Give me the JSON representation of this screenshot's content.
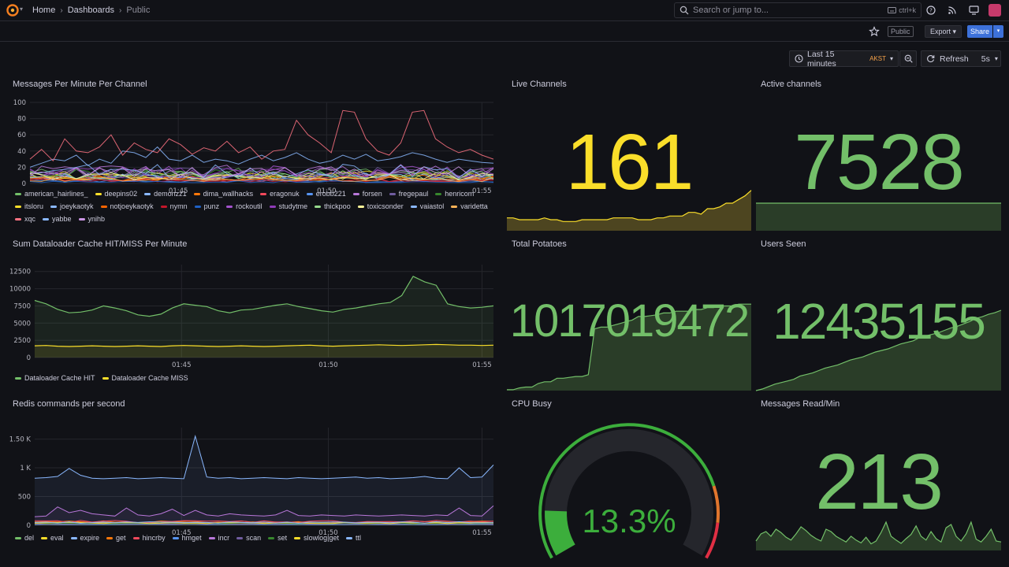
{
  "breadcrumb": {
    "home": "Home",
    "dashboards": "Dashboards",
    "current": "Public"
  },
  "search": {
    "placeholder": "Search or jump to...",
    "shortcut": "ctrl+k"
  },
  "toolbar": {
    "public_badge": "Public",
    "export_label": "Export",
    "share_label": "Share"
  },
  "timepicker": {
    "range": "Last 15 minutes",
    "timezone": "AKST",
    "refresh_label": "Refresh",
    "interval": "5s"
  },
  "colors": {
    "yellow_stat": "#fade2a",
    "green_stat": "#73bf69",
    "yellow_fill": "#4d4520",
    "green_fill": "#2a3d28"
  },
  "panels": {
    "messages": {
      "title": "Messages Per Minute Per Channel"
    },
    "live": {
      "title": "Live Channels",
      "value": "161"
    },
    "active": {
      "title": "Active channels",
      "value": "7528"
    },
    "dataloader": {
      "title": "Sum Dataloader Cache HIT/MISS Per Minute"
    },
    "potatoes": {
      "title": "Total Potatoes",
      "value": "1017019472"
    },
    "users": {
      "title": "Users Seen",
      "value": "12435155"
    },
    "redis": {
      "title": "Redis commands per second"
    },
    "cpu": {
      "title": "CPU Busy",
      "value": "13.3%",
      "percent": 13.3
    },
    "reads": {
      "title": "Messages Read/Min",
      "value": "213"
    }
  },
  "chart_data": [
    {
      "type": "line",
      "panel": "Messages Per Minute Per Channel",
      "x_ticks": [
        "01:45",
        "01:50",
        "01:55"
      ],
      "y_ticks": [
        "0",
        "20",
        "40",
        "60",
        "80",
        "100"
      ],
      "ylim": [
        0,
        100
      ],
      "legend": "bottom",
      "series": [
        {
          "name": "american_hairlines_",
          "color": "#73bf69"
        },
        {
          "name": "deepins02",
          "color": "#fade2a"
        },
        {
          "name": "demonzz1",
          "color": "#8ab8ff"
        },
        {
          "name": "dima_wallhacks",
          "color": "#ff780a"
        },
        {
          "name": "eragonuk",
          "color": "#f2495c"
        },
        {
          "name": "erobb221",
          "color": "#5794f2"
        },
        {
          "name": "forsen",
          "color": "#b877d9"
        },
        {
          "name": "fregepaul",
          "color": "#705da0"
        },
        {
          "name": "henricom",
          "color": "#37872d"
        },
        {
          "name": "itsloru",
          "color": "#fade2a"
        },
        {
          "name": "joeykaotyk",
          "color": "#8ab8ff"
        },
        {
          "name": "notjoeykaotyk",
          "color": "#fa6400"
        },
        {
          "name": "nymn",
          "color": "#c4162a"
        },
        {
          "name": "punz",
          "color": "#1f60c4"
        },
        {
          "name": "rockoutil",
          "color": "#a352cc"
        },
        {
          "name": "studytme",
          "color": "#8f3bb8"
        },
        {
          "name": "thickpoo",
          "color": "#96d98d"
        },
        {
          "name": "toxicsonder",
          "color": "#fff899"
        },
        {
          "name": "vaiastol",
          "color": "#8ab8ff"
        },
        {
          "name": "varidetta",
          "color": "#ffb357"
        },
        {
          "name": "xqc",
          "color": "#ff7383"
        },
        {
          "name": "yabbe",
          "color": "#8ab8ff"
        },
        {
          "name": "ynihb",
          "color": "#ca95e5"
        }
      ],
      "highlight_series": [
        {
          "name": "xqc",
          "values": [
            30,
            42,
            28,
            55,
            40,
            38,
            45,
            60,
            35,
            50,
            42,
            38,
            55,
            48,
            36,
            44,
            40,
            52,
            38,
            45,
            30,
            40,
            42,
            78,
            60,
            50,
            38,
            90,
            88,
            55,
            40,
            35,
            50,
            88,
            90,
            55,
            45,
            38,
            42,
            35,
            30
          ]
        },
        {
          "name": "vaiastol",
          "values": [
            20,
            25,
            30,
            28,
            35,
            22,
            30,
            25,
            40,
            38,
            32,
            45,
            30,
            28,
            35,
            26,
            30,
            28,
            24,
            30,
            35,
            28,
            32,
            38,
            30,
            25,
            28,
            35,
            30,
            36,
            28,
            30,
            33,
            38,
            35,
            30,
            26,
            30,
            28,
            26,
            25
          ]
        }
      ]
    },
    {
      "type": "area",
      "panel": "Sum Dataloader Cache HIT/MISS Per Minute",
      "x_ticks": [
        "01:45",
        "01:50",
        "01:55"
      ],
      "y_ticks": [
        "0",
        "2500",
        "5000",
        "7500",
        "10000",
        "12500"
      ],
      "ylim": [
        0,
        13500
      ],
      "legend": "bottom",
      "series": [
        {
          "name": "Dataloader Cache HIT",
          "color": "#73bf69",
          "values": [
            8300,
            7800,
            7000,
            6500,
            6600,
            6900,
            7500,
            7200,
            6800,
            6200,
            6000,
            6300,
            7200,
            7800,
            7600,
            7400,
            6800,
            6500,
            6900,
            7000,
            7300,
            7600,
            7800,
            7400,
            7100,
            6800,
            6600,
            7000,
            7200,
            7500,
            7800,
            8000,
            9000,
            11800,
            11000,
            10500,
            7800,
            7400,
            7200,
            7300,
            7500
          ]
        },
        {
          "name": "Dataloader Cache MISS",
          "color": "#fade2a",
          "values": [
            1700,
            1750,
            1650,
            1600,
            1650,
            1700,
            1650,
            1600,
            1650,
            1700,
            1650,
            1600,
            1700,
            1750,
            1700,
            1650,
            1600,
            1650,
            1700,
            1650,
            1600,
            1650,
            1700,
            1750,
            1800,
            1700,
            1650,
            1700,
            1750,
            1800,
            1850,
            1800,
            1750,
            1800,
            1850,
            1900,
            1850,
            1800,
            1800,
            1750,
            1800
          ]
        }
      ]
    },
    {
      "type": "area",
      "panel": "Redis commands per second",
      "x_ticks": [
        "01:45",
        "01:50",
        "01:55"
      ],
      "y_ticks": [
        "0",
        "500",
        "1 K",
        "1.50 K"
      ],
      "ylim": [
        0,
        1700
      ],
      "legend": "bottom",
      "series": [
        {
          "name": "del",
          "color": "#73bf69"
        },
        {
          "name": "eval",
          "color": "#fade2a"
        },
        {
          "name": "expire",
          "color": "#8ab8ff",
          "values": [
            820,
            830,
            850,
            990,
            870,
            820,
            810,
            820,
            830,
            810,
            820,
            830,
            820,
            810,
            1550,
            840,
            820,
            830,
            810,
            820,
            830,
            820,
            810,
            830,
            820,
            810,
            820,
            830,
            840,
            820,
            830,
            810,
            820,
            830,
            850,
            820,
            810,
            1000,
            830,
            840,
            1050
          ]
        },
        {
          "name": "get",
          "color": "#ff780a"
        },
        {
          "name": "hincrby",
          "color": "#f2495c"
        },
        {
          "name": "hmget",
          "color": "#5794f2"
        },
        {
          "name": "incr",
          "color": "#b877d9",
          "values": [
            150,
            160,
            320,
            220,
            260,
            200,
            180,
            160,
            300,
            180,
            160,
            200,
            280,
            170,
            260,
            180,
            160,
            200,
            180,
            170,
            160,
            180,
            260,
            170,
            160,
            180,
            170,
            160,
            180,
            170,
            160,
            170,
            180,
            170,
            160,
            180,
            170,
            300,
            170,
            160,
            340
          ]
        },
        {
          "name": "scan",
          "color": "#705da0"
        },
        {
          "name": "set",
          "color": "#37872d"
        },
        {
          "name": "slowlog|get",
          "color": "#fade2a"
        },
        {
          "name": "ttl",
          "color": "#8ab8ff"
        }
      ]
    }
  ]
}
